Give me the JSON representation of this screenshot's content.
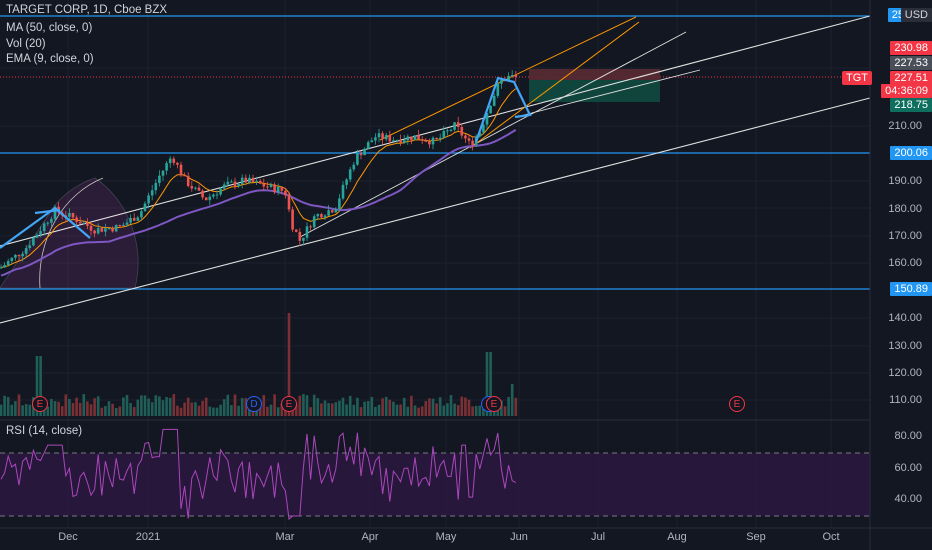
{
  "header": {
    "symbol_line": "TARGET CORP, 1D, Cboe BZX",
    "indicators": [
      "MA (50, close, 0)",
      "Vol (20)",
      "EMA (9, close, 0)"
    ]
  },
  "price_axis": {
    "currency": "USD",
    "top_cut_label": "25",
    "ticks": [
      "210.00",
      "190.00",
      "180.00",
      "170.00",
      "160.00",
      "140.00",
      "130.00",
      "120.00",
      "110.00"
    ],
    "tick_values": [
      210,
      190,
      180,
      170,
      160,
      140,
      130,
      120,
      110
    ],
    "range": [
      100,
      255
    ]
  },
  "price_tags": {
    "t230": "230.98",
    "t227top": "227.53",
    "last": "227.51",
    "countdown": "04:36:09",
    "t218": "218.75",
    "t200": "200.06",
    "t150": "150.89",
    "symbol": "TGT"
  },
  "time_axis": {
    "labels": [
      "Dec",
      "2021",
      "Mar",
      "Apr",
      "May",
      "Jun",
      "Jul",
      "Aug",
      "Sep",
      "Oct"
    ]
  },
  "rsi": {
    "label": "RSI (14, close)",
    "ticks": [
      "80.00",
      "60.00",
      "40.00"
    ],
    "tick_values": [
      80,
      60,
      40
    ],
    "upper_band": 70,
    "lower_band": 30
  },
  "events": [
    {
      "kind": "E",
      "label": "E"
    },
    {
      "kind": "D",
      "label": "D"
    },
    {
      "kind": "E",
      "label": "E"
    },
    {
      "kind": "E",
      "label": "E"
    },
    {
      "kind": "E",
      "label": "E"
    },
    {
      "kind": "E",
      "label": "E"
    }
  ],
  "colors": {
    "background": "#131722",
    "up": "#26a69a",
    "down": "#ef5350",
    "ma": "#7e57c2",
    "ema": "#ff9800",
    "hline": "#2196f3",
    "last_price": "#f23645",
    "rsi": "#9c27b0"
  }
}
